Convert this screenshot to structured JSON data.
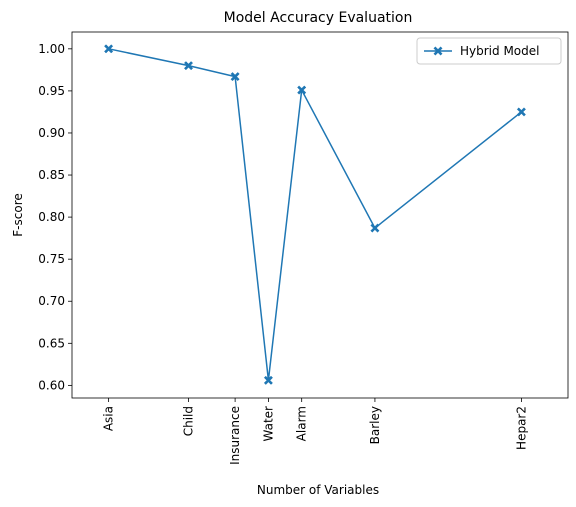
{
  "chart_data": {
    "type": "line",
    "title": "Model Accuracy Evaluation",
    "xlabel": "Number of Variables",
    "ylabel": "F-score",
    "ylim": [
      0.585,
      1.02
    ],
    "yticks": [
      0.6,
      0.65,
      0.7,
      0.75,
      0.8,
      0.85,
      0.9,
      0.95,
      1.0
    ],
    "ytick_labels": [
      "0.60",
      "0.65",
      "0.70",
      "0.75",
      "0.80",
      "0.85",
      "0.90",
      "0.95",
      "1.00"
    ],
    "xlim": [
      2.5,
      77
    ],
    "x": [
      8,
      20,
      27,
      32,
      37,
      48,
      70
    ],
    "categories": [
      "Asia",
      "Child",
      "Insurance",
      "Water",
      "Alarm",
      "Barley",
      "Hepar2"
    ],
    "series": [
      {
        "name": "Hybrid Model",
        "values": [
          1.0,
          0.98,
          0.967,
          0.606,
          0.951,
          0.787,
          0.925
        ],
        "color": "#1f77b4",
        "marker": "X"
      }
    ],
    "legend": "top-right",
    "grid": false
  }
}
